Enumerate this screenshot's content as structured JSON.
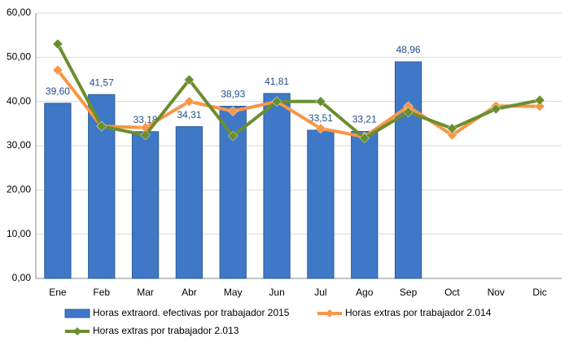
{
  "chart_data": {
    "type": "bar",
    "categories": [
      "Ene",
      "Feb",
      "Mar",
      "Abr",
      "May",
      "Jun",
      "Jul",
      "Ago",
      "Sep",
      "Oct",
      "Nov",
      "Dic"
    ],
    "ylim": [
      0,
      60
    ],
    "yticks": [
      {
        "value": 0,
        "label": "0,00"
      },
      {
        "value": 10,
        "label": "10,00"
      },
      {
        "value": 20,
        "label": "20,00"
      },
      {
        "value": 30,
        "label": "30,00"
      },
      {
        "value": 40,
        "label": "40,00"
      },
      {
        "value": 50,
        "label": "50,00"
      },
      {
        "value": 60,
        "label": "60,00"
      }
    ],
    "grid": true,
    "legend": "bottom",
    "series": [
      {
        "name": "Horas extraord. efectivas por trabajador 2015",
        "type": "bar",
        "color": "#3f78c6",
        "values": [
          39.6,
          41.57,
          33.18,
          34.31,
          38.93,
          41.81,
          33.51,
          33.21,
          48.96,
          null,
          null,
          null
        ],
        "value_labels": [
          "39,60",
          "41,57",
          "33,18",
          "34,31",
          "38,93",
          "41,81",
          "33,51",
          "33,21",
          "48,96",
          null,
          null,
          null
        ]
      },
      {
        "name": "Horas extras por trabajador 2.014",
        "type": "line",
        "color": "#f79646",
        "values": [
          47.1,
          34.4,
          34.1,
          40.0,
          37.8,
          40.0,
          33.9,
          32.0,
          38.9,
          32.4,
          39.0,
          38.9
        ]
      },
      {
        "name": "Horas extras por trabajador 2.013",
        "type": "line",
        "color": "#6a8e2e",
        "values": [
          53.0,
          34.4,
          32.4,
          44.9,
          32.2,
          40.0,
          40.0,
          31.7,
          37.6,
          33.9,
          38.3,
          40.3
        ]
      }
    ]
  }
}
